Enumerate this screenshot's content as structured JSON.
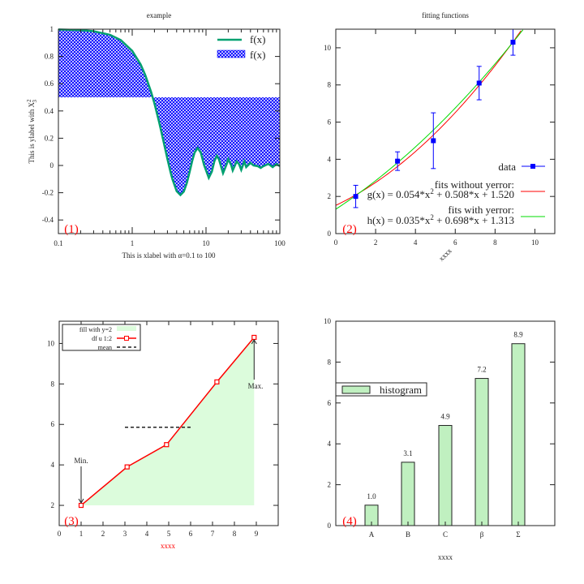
{
  "chart_data": [
    {
      "type": "line",
      "title": "example",
      "xlabel": "This is xlabel with α=0.1 to 100",
      "ylabel": "This is ylabel with X²₃",
      "ylabel_main": "This is ylabel with X",
      "ylabel_sup": "2",
      "ylabel_sub": "3",
      "xscale": "log",
      "xlim": [
        0.1,
        100
      ],
      "ylim": [
        -0.5,
        1
      ],
      "xticks": [
        "0.1",
        "1",
        "10",
        "100"
      ],
      "yticks": [
        "-0.4",
        "-0.2",
        "0",
        "0.2",
        "0.4",
        "0.6",
        "0.8",
        "1"
      ],
      "panel_label": "(1)",
      "fill_baseline": 0.5,
      "series": [
        {
          "name": "f(x)",
          "style": "line",
          "color": "#00a070"
        },
        {
          "name": "f(x)",
          "style": "filledcurves",
          "color": "#0000ff"
        }
      ],
      "x": [
        0.1,
        0.2,
        0.3,
        0.5,
        0.7,
        1,
        1.3,
        1.5,
        1.8,
        2,
        2.3,
        2.5,
        2.8,
        3,
        3.3,
        3.5,
        4,
        4.5,
        5,
        5.5,
        6,
        6.5,
        7,
        7.7,
        8.5,
        9.4,
        10.9,
        12,
        13,
        14,
        15,
        17,
        19,
        20,
        22,
        23,
        26,
        28,
        30,
        33,
        35,
        40,
        44,
        50,
        55,
        60,
        70,
        80,
        90,
        100
      ],
      "y": [
        0.998,
        0.993,
        0.985,
        0.959,
        0.92,
        0.841,
        0.742,
        0.665,
        0.541,
        0.455,
        0.324,
        0.239,
        0.12,
        0.047,
        -0.048,
        -0.1,
        -0.189,
        -0.217,
        -0.192,
        -0.128,
        -0.047,
        0.033,
        0.094,
        0.128,
        0.094,
        0.004,
        -0.091,
        -0.045,
        0.032,
        0.071,
        0.043,
        -0.057,
        0.008,
        0.046,
        -0.0,
        -0.037,
        0.029,
        0.01,
        -0.033,
        0.03,
        -0.012,
        0.019,
        0.0,
        -0.005,
        -0.018,
        -0.005,
        0.011,
        -0.012,
        0.01,
        -0.005
      ]
    },
    {
      "type": "scatter",
      "title": "fitting functions",
      "xlabel": "xxxx",
      "xlim": [
        0,
        11
      ],
      "ylim": [
        0,
        11
      ],
      "xticks": [
        "0",
        "2",
        "4",
        "6",
        "8",
        "10"
      ],
      "yticks": [
        "0",
        "2",
        "4",
        "6",
        "8",
        "10"
      ],
      "panel_label": "(2)",
      "data": {
        "name": "data",
        "color": "#0000ff",
        "x": [
          1,
          3.1,
          4.9,
          7.2,
          8.9
        ],
        "y": [
          2,
          3.9,
          5.0,
          8.1,
          10.3
        ],
        "yerr": [
          0.6,
          0.5,
          1.5,
          0.9,
          0.7
        ]
      },
      "fits": [
        {
          "heading": "fits without yerror:",
          "label_main": "g(x) = 0.054*x",
          "label_rest": " + 0.508*x + 1.520",
          "sup": "2",
          "coeffs": [
            0.054,
            0.508,
            1.52
          ],
          "color": "#ff0000"
        },
        {
          "heading": "fits with yerror:",
          "label_main": "h(x) = 0.035*x",
          "label_rest": " + 0.698*x + 1.313",
          "sup": "2",
          "coeffs": [
            0.035,
            0.698,
            1.313
          ],
          "color": "#00dd00"
        }
      ]
    },
    {
      "type": "line",
      "xlabel": "xxxx",
      "xlabel_color": "#ff0000",
      "xlim": [
        0,
        10
      ],
      "ylim": [
        1,
        11.1
      ],
      "xticks": [
        "0",
        "1",
        "2",
        "3",
        "4",
        "5",
        "6",
        "7",
        "8",
        "9"
      ],
      "yticks": [
        "2",
        "4",
        "6",
        "8",
        "10"
      ],
      "panel_label": "(3)",
      "legend": [
        "fill with y=2",
        "df u 1:2",
        "mean"
      ],
      "fill_baseline": 2,
      "fill_color": "#dcfcdc",
      "line_color": "#ff0000",
      "x": [
        1,
        3.1,
        4.9,
        7.2,
        8.9
      ],
      "y": [
        2,
        3.9,
        5.0,
        8.1,
        10.3
      ],
      "mean": {
        "value": 5.86,
        "x_range": [
          3,
          6
        ]
      },
      "annotations": [
        {
          "text": "Min.",
          "x": 1,
          "y": 2
        },
        {
          "text": "Max.",
          "x": 8.9,
          "y": 10.3
        }
      ]
    },
    {
      "type": "bar",
      "xlabel": "xxxx",
      "ylim": [
        0,
        10
      ],
      "yticks": [
        "0",
        "2",
        "4",
        "6",
        "8",
        "10"
      ],
      "panel_label": "(4)",
      "legend": "histogram",
      "bar_color": "#c0f0c0",
      "categories": [
        "A",
        "B",
        "C",
        "β",
        "Σ"
      ],
      "values": [
        1.0,
        3.1,
        4.9,
        7.2,
        8.9
      ],
      "value_labels": [
        "1.0",
        "3.1",
        "4.9",
        "7.2",
        "8.9"
      ]
    }
  ]
}
